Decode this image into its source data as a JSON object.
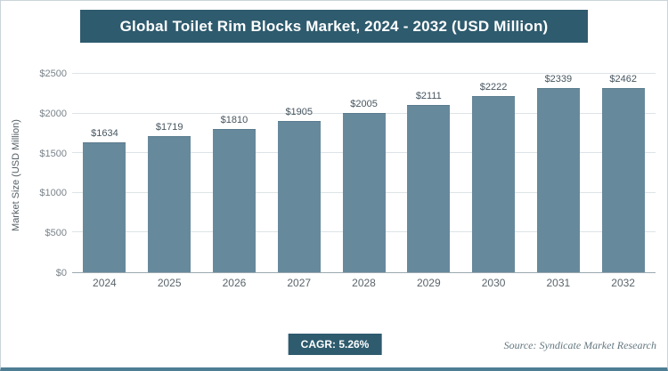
{
  "title": "Global Toilet Rim Blocks Market, 2024 - 2032 (USD Million)",
  "chart_data": {
    "type": "bar",
    "categories": [
      "2024",
      "2025",
      "2026",
      "2027",
      "2028",
      "2029",
      "2030",
      "2031",
      "2032"
    ],
    "values": [
      1634,
      1719,
      1810,
      1905,
      2005,
      2111,
      2222,
      2339,
      2462
    ],
    "value_labels": [
      "$1634",
      "$1719",
      "$1810",
      "$1905",
      "$2005",
      "$2111",
      "$2222",
      "$2339",
      "$2462"
    ],
    "title": "Global Toilet Rim Blocks Market, 2024 - 2032 (USD Million)",
    "xlabel": "",
    "ylabel": "Market Size (USD Million)",
    "yticks": [
      "$0",
      "$500",
      "$1000",
      "$1500",
      "$2000",
      "$2500"
    ],
    "ylim": [
      0,
      2500
    ],
    "grid": "horizontal",
    "legend": "none",
    "bar_color": "#67899c"
  },
  "footer": {
    "cagr_label": "CAGR: 5.26%",
    "source": "Source: Syndicate Market Research"
  },
  "colors": {
    "title_background": "#2e5b6e",
    "title_text": "#ffffff",
    "bar": "#67899c",
    "accent_border": "#4e7e93"
  }
}
